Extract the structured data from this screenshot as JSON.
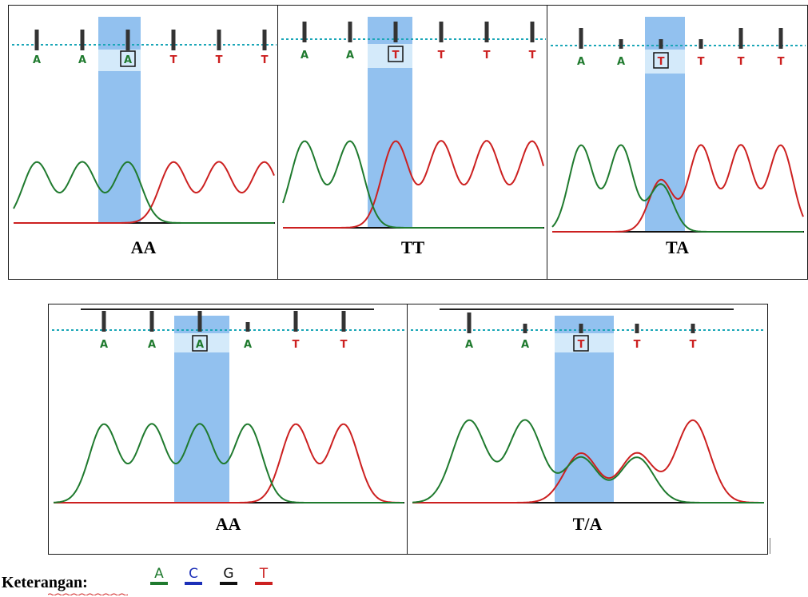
{
  "panels": [
    {
      "id": "p1",
      "genotype": "AA",
      "bases": [
        "A",
        "A",
        "A",
        "T",
        "T",
        "T"
      ],
      "boxed_index": 2,
      "bar_heights": [
        "full",
        "full",
        "full",
        "full",
        "full",
        "full"
      ],
      "traces": [
        "A",
        "A",
        "A",
        "T",
        "T",
        "T"
      ]
    },
    {
      "id": "p2",
      "genotype": "TT",
      "bases": [
        "A",
        "A",
        "T",
        "T",
        "T",
        "T"
      ],
      "boxed_index": 2,
      "bar_heights": [
        "full",
        "full",
        "full",
        "full",
        "full",
        "full"
      ],
      "traces": [
        "A",
        "A",
        "T",
        "T",
        "T",
        "T"
      ]
    },
    {
      "id": "p3",
      "genotype": "TA",
      "bases": [
        "A",
        "A",
        "T",
        "T",
        "T",
        "T"
      ],
      "boxed_index": 2,
      "bar_heights": [
        "full",
        "short",
        "short",
        "short",
        "full",
        "full"
      ],
      "traces": [
        "A",
        "A",
        "TA",
        "T",
        "T",
        "T"
      ]
    },
    {
      "id": "p4",
      "genotype": "AA",
      "bases": [
        "A",
        "A",
        "A",
        "A",
        "T",
        "T"
      ],
      "boxed_index": 2,
      "bar_heights": [
        "full",
        "full",
        "full",
        "short",
        "full",
        "full"
      ],
      "traces": [
        "A",
        "A",
        "A",
        "A",
        "T",
        "T"
      ]
    },
    {
      "id": "p5",
      "genotype": "T/A",
      "bases": [
        "A",
        "A",
        "T",
        "T",
        "T"
      ],
      "boxed_index": 2,
      "bar_heights": [
        "full",
        "short",
        "short",
        "short",
        "short"
      ],
      "traces": [
        "A",
        "A",
        "TA",
        "TA",
        "T"
      ]
    }
  ],
  "legend": {
    "title": "Keterangan:",
    "items": [
      {
        "base": "A",
        "color": "#1f7a2e"
      },
      {
        "base": "C",
        "color": "#1c2fb8"
      },
      {
        "base": "G",
        "color": "#111111"
      },
      {
        "base": "T",
        "color": "#cc2020"
      }
    ]
  },
  "colors": {
    "A": "#1f7a2e",
    "C": "#1c2fb8",
    "G": "#111111",
    "T": "#cc2020",
    "highlight": "#7fb6ec",
    "highlight_band": "#dbeefb",
    "dotted_line": "#1aa6b7",
    "bar": "#333333"
  }
}
